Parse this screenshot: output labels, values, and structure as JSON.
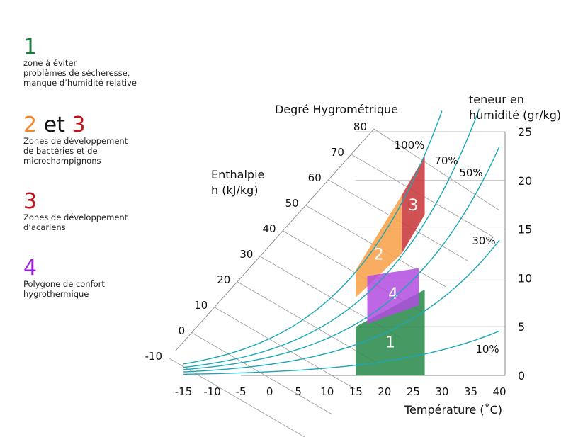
{
  "legend": {
    "z1": {
      "number": "1",
      "desc": "zone à éviter\nproblèmes de sécheresse,\nmanque d’humidité relative"
    },
    "z23": {
      "num_a": "2",
      "et": " et ",
      "num_b": "3",
      "desc": "Zones de développement\nde bactéries et de\nmicrochampignons"
    },
    "z3": {
      "number": "3",
      "desc": "Zones de développement\nd’acariens"
    },
    "z4": {
      "number": "4",
      "desc": "Polygone de confort\nhygrothermique"
    }
  },
  "colors": {
    "green": "#1b7a3e",
    "orange": "#f5872a",
    "red": "#c0141c",
    "purple": "#9b1ed6",
    "curve": "#1aa7b5",
    "zone1": "#2e8b4e",
    "zone2": "#f7a24b",
    "zone3": "#c8393c",
    "zone4": "#b14ce0"
  },
  "chart_data": {
    "type": "psychrometric",
    "title": "Degré Hygrométrique",
    "xlabel": "Température (˚C)",
    "ylabel": "teneur en humidité (gr/kg)",
    "enthalpy_label": "Enthalpie h (kJ/kg)",
    "enthalpy_label_lines": [
      "Enthalpie",
      "h (kJ/kg)"
    ],
    "ylabel_lines": [
      "teneur en",
      "humidité (gr/kg)"
    ],
    "x_ticks": [
      "-15",
      "-10",
      "-5",
      "0",
      "5",
      "10",
      "15",
      "20",
      "25",
      "30",
      "35",
      "40"
    ],
    "x_tick_values": [
      -15,
      -10,
      -5,
      0,
      5,
      10,
      15,
      20,
      25,
      30,
      35,
      40
    ],
    "y_ticks": [
      "0",
      "5",
      "10",
      "15",
      "20",
      "25"
    ],
    "y_tick_values": [
      0,
      5,
      10,
      15,
      20,
      25
    ],
    "xlim": [
      -15,
      40
    ],
    "ylim": [
      0,
      25
    ],
    "enthalpy_ticks": [
      "-10",
      "0",
      "10",
      "20",
      "30",
      "40",
      "50",
      "60",
      "70",
      "80"
    ],
    "enthalpy_tick_values": [
      -10,
      0,
      10,
      20,
      30,
      40,
      50,
      60,
      70,
      80
    ],
    "humidity_curves": [
      {
        "label": "100%",
        "rh": 100
      },
      {
        "label": "70%",
        "rh": 70
      },
      {
        "label": "50%",
        "rh": 50
      },
      {
        "label": "30%",
        "rh": 30
      },
      {
        "label": "10%",
        "rh": 10
      }
    ],
    "zones": [
      {
        "label": "1",
        "points": [
          [
            15,
            0
          ],
          [
            27,
            0
          ],
          [
            27,
            8.8
          ],
          [
            15,
            5
          ]
        ]
      },
      {
        "label": "2",
        "points": [
          [
            15,
            8
          ],
          [
            23,
            12.5
          ],
          [
            23,
            18.5
          ],
          [
            15,
            10.8
          ]
        ]
      },
      {
        "label": "3",
        "points": [
          [
            23,
            12.5
          ],
          [
            27,
            16.5
          ],
          [
            27,
            22.5
          ],
          [
            23,
            18.5
          ]
        ]
      },
      {
        "label": "4",
        "points": [
          [
            17,
            5.3
          ],
          [
            26,
            7.2
          ],
          [
            26,
            11
          ],
          [
            17,
            10.2
          ]
        ]
      }
    ]
  }
}
